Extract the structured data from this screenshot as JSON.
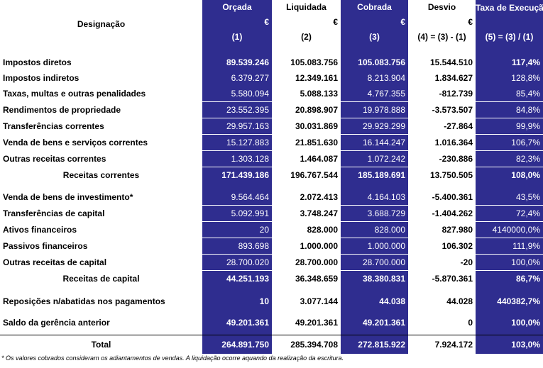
{
  "header": {
    "designacao": "Designação",
    "cols": [
      {
        "title": "Orçada",
        "currency": "€",
        "num": "(1)"
      },
      {
        "title": "Liquidada",
        "currency": "€",
        "num": "(2)"
      },
      {
        "title": "Cobrada",
        "currency": "€",
        "num": "(3)"
      },
      {
        "title": "Desvio",
        "currency": "€",
        "num": "(4) = (3) - (1)"
      },
      {
        "title": "Taxa de Execução",
        "currency": "",
        "num": "(5) = (3) / (1)"
      }
    ]
  },
  "rows": {
    "r1": [
      "Impostos diretos",
      "89.539.246",
      "105.083.756",
      "105.083.756",
      "15.544.510",
      "117,4%"
    ],
    "r2": [
      "Impostos indiretos",
      "6.379.277",
      "12.349.161",
      "8.213.904",
      "1.834.627",
      "128,8%"
    ],
    "r3": [
      "Taxas, multas e outras penalidades",
      "5.580.094",
      "5.088.133",
      "4.767.355",
      "-812.739",
      "85,4%"
    ],
    "r4": [
      "Rendimentos de propriedade",
      "23.552.395",
      "20.898.907",
      "19.978.888",
      "-3.573.507",
      "84,8%"
    ],
    "r5": [
      "Transferências correntes",
      "29.957.163",
      "30.031.869",
      "29.929.299",
      "-27.864",
      "99,9%"
    ],
    "r6": [
      "Venda de bens e serviços correntes",
      "15.127.883",
      "21.851.630",
      "16.144.247",
      "1.016.364",
      "106,7%"
    ],
    "r7": [
      "Outras receitas correntes",
      "1.303.128",
      "1.464.087",
      "1.072.242",
      "-230.886",
      "82,3%"
    ],
    "r8": [
      "Receitas correntes",
      "171.439.186",
      "196.767.544",
      "185.189.691",
      "13.750.505",
      "108,0%"
    ],
    "r9": [
      "Venda de bens de investimento*",
      "9.564.464",
      "2.072.413",
      "4.164.103",
      "-5.400.361",
      "43,5%"
    ],
    "r10": [
      "Transferências de capital",
      "5.092.991",
      "3.748.247",
      "3.688.729",
      "-1.404.262",
      "72,4%"
    ],
    "r11": [
      "Ativos financeiros",
      "20",
      "828.000",
      "828.000",
      "827.980",
      "4140000,0%"
    ],
    "r12": [
      "Passivos financeiros",
      "893.698",
      "1.000.000",
      "1.000.000",
      "106.302",
      "111,9%"
    ],
    "r13": [
      "Outras receitas de capital",
      "28.700.020",
      "28.700.000",
      "28.700.000",
      "-20",
      "100,0%"
    ],
    "r14": [
      "Receitas de capital",
      "44.251.193",
      "36.348.659",
      "38.380.831",
      "-5.870.361",
      "86,7%"
    ],
    "r15": [
      "Reposições n/abatidas nos pagamentos",
      "10",
      "3.077.144",
      "44.038",
      "44.028",
      "440382,7%"
    ],
    "r16": [
      "Saldo da gerência anterior",
      "49.201.361",
      "49.201.361",
      "49.201.361",
      "0",
      "100,0%"
    ],
    "r17": [
      "Total",
      "264.891.750",
      "285.394.708",
      "272.815.922",
      "7.924.172",
      "103,0%"
    ]
  },
  "footnote": "* Os valores cobrados consideram os adiantamentos de vendas. A liquidação ocorre aquando da realização da escritura."
}
